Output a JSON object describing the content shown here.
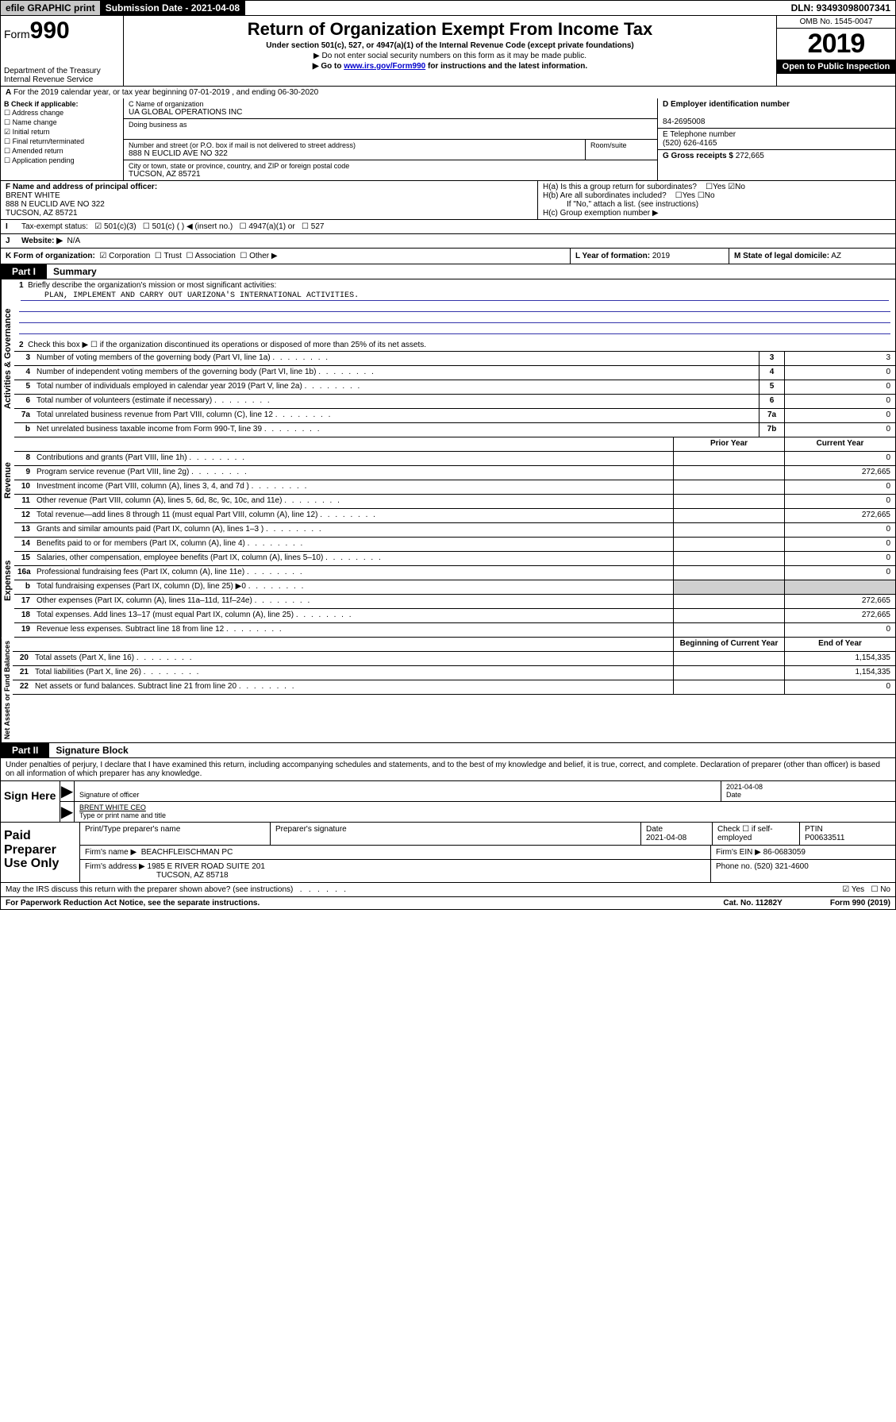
{
  "topbar": {
    "efile": "efile GRAPHIC print",
    "submission": "Submission Date - 2021-04-08",
    "dln": "DLN: 93493098007341"
  },
  "header": {
    "form_label": "Form",
    "form_num": "990",
    "dept": "Department of the Treasury",
    "irs": "Internal Revenue Service",
    "title": "Return of Organization Exempt From Income Tax",
    "sub1": "Under section 501(c), 527, or 4947(a)(1) of the Internal Revenue Code (except private foundations)",
    "sub2": "▶ Do not enter social security numbers on this form as it may be made public.",
    "sub3a": "▶ Go to ",
    "sub3b": "www.irs.gov/Form990",
    "sub3c": " for instructions and the latest information.",
    "omb": "OMB No. 1545-0047",
    "year": "2019",
    "open": "Open to Public Inspection"
  },
  "line_a": "For the 2019 calendar year, or tax year beginning 07-01-2019    , and ending 06-30-2020",
  "check_b": {
    "label": "B Check if applicable:",
    "opts": [
      "Address change",
      "Name change",
      "Initial return",
      "Final return/terminated",
      "Amended return",
      "Application pending"
    ],
    "checked_idx": 2
  },
  "c": {
    "label_name": "C Name of organization",
    "name": "UA GLOBAL OPERATIONS INC",
    "dba_label": "Doing business as",
    "addr_label": "Number and street (or P.O. box if mail is not delivered to street address)",
    "room_label": "Room/suite",
    "addr": "888 N EUCLID AVE NO 322",
    "city_label": "City or town, state or province, country, and ZIP or foreign postal code",
    "city": "TUCSON, AZ  85721"
  },
  "d": {
    "label": "D Employer identification number",
    "val": "84-2695008"
  },
  "e": {
    "label": "E Telephone number",
    "val": "(520) 626-4165"
  },
  "g": {
    "label": "G Gross receipts $",
    "val": "272,665"
  },
  "f": {
    "label": "F  Name and address of principal officer:",
    "name": "BRENT WHITE",
    "addr1": "888 N EUCLID AVE NO 322",
    "addr2": "TUCSON, AZ  85721"
  },
  "h": {
    "a": "H(a)  Is this a group return for subordinates?",
    "b": "H(b)  Are all subordinates included?",
    "b_note": "If \"No,\" attach a list. (see instructions)",
    "c": "H(c)  Group exemption number ▶"
  },
  "i": {
    "label": "Tax-exempt status:",
    "o1": "501(c)(3)",
    "o2": "501(c) (   ) ◀ (insert no.)",
    "o3": "4947(a)(1) or",
    "o4": "527"
  },
  "j": {
    "label": "Website: ▶",
    "val": "N/A"
  },
  "k": {
    "label": "K Form of organization:",
    "opts": [
      "Corporation",
      "Trust",
      "Association",
      "Other ▶"
    ]
  },
  "l": {
    "label": "L Year of formation:",
    "val": "2019"
  },
  "m": {
    "label": "M State of legal domicile:",
    "val": "AZ"
  },
  "part1": {
    "tag": "Part I",
    "title": "Summary"
  },
  "q1": {
    "num": "1",
    "label": "Briefly describe the organization's mission or most significant activities:",
    "text": "PLAN, IMPLEMENT AND CARRY OUT UARIZONA'S INTERNATIONAL ACTIVITIES."
  },
  "q2": {
    "num": "2",
    "label": "Check this box ▶ ☐  if the organization discontinued its operations or disposed of more than 25% of its net assets."
  },
  "rows_gov": [
    {
      "num": "3",
      "desc": "Number of voting members of the governing body (Part VI, line 1a)",
      "box": "3",
      "val": "3"
    },
    {
      "num": "4",
      "desc": "Number of independent voting members of the governing body (Part VI, line 1b)",
      "box": "4",
      "val": "0"
    },
    {
      "num": "5",
      "desc": "Total number of individuals employed in calendar year 2019 (Part V, line 2a)",
      "box": "5",
      "val": "0"
    },
    {
      "num": "6",
      "desc": "Total number of volunteers (estimate if necessary)",
      "box": "6",
      "val": "0"
    },
    {
      "num": "7a",
      "desc": "Total unrelated business revenue from Part VIII, column (C), line 12",
      "box": "7a",
      "val": "0"
    },
    {
      "num": "b",
      "desc": "Net unrelated business taxable income from Form 990-T, line 39",
      "box": "7b",
      "val": "0"
    }
  ],
  "hdr_py": "Prior Year",
  "hdr_cy": "Current Year",
  "rows_rev": [
    {
      "num": "8",
      "desc": "Contributions and grants (Part VIII, line 1h)",
      "py": "",
      "cy": "0"
    },
    {
      "num": "9",
      "desc": "Program service revenue (Part VIII, line 2g)",
      "py": "",
      "cy": "272,665"
    },
    {
      "num": "10",
      "desc": "Investment income (Part VIII, column (A), lines 3, 4, and 7d )",
      "py": "",
      "cy": "0"
    },
    {
      "num": "11",
      "desc": "Other revenue (Part VIII, column (A), lines 5, 6d, 8c, 9c, 10c, and 11e)",
      "py": "",
      "cy": "0"
    },
    {
      "num": "12",
      "desc": "Total revenue—add lines 8 through 11 (must equal Part VIII, column (A), line 12)",
      "py": "",
      "cy": "272,665"
    }
  ],
  "rows_exp": [
    {
      "num": "13",
      "desc": "Grants and similar amounts paid (Part IX, column (A), lines 1–3 )",
      "py": "",
      "cy": "0"
    },
    {
      "num": "14",
      "desc": "Benefits paid to or for members (Part IX, column (A), line 4)",
      "py": "",
      "cy": "0"
    },
    {
      "num": "15",
      "desc": "Salaries, other compensation, employee benefits (Part IX, column (A), lines 5–10)",
      "py": "",
      "cy": "0"
    },
    {
      "num": "16a",
      "desc": "Professional fundraising fees (Part IX, column (A), line 11e)",
      "py": "",
      "cy": "0"
    },
    {
      "num": "b",
      "desc": "Total fundraising expenses (Part IX, column (D), line 25) ▶0",
      "py": "gray",
      "cy": "gray"
    },
    {
      "num": "17",
      "desc": "Other expenses (Part IX, column (A), lines 11a–11d, 11f–24e)",
      "py": "",
      "cy": "272,665"
    },
    {
      "num": "18",
      "desc": "Total expenses. Add lines 13–17 (must equal Part IX, column (A), line 25)",
      "py": "",
      "cy": "272,665"
    },
    {
      "num": "19",
      "desc": "Revenue less expenses. Subtract line 18 from line 12",
      "py": "",
      "cy": "0"
    }
  ],
  "hdr_bcy": "Beginning of Current Year",
  "hdr_eoy": "End of Year",
  "rows_net": [
    {
      "num": "20",
      "desc": "Total assets (Part X, line 16)",
      "py": "",
      "cy": "1,154,335"
    },
    {
      "num": "21",
      "desc": "Total liabilities (Part X, line 26)",
      "py": "",
      "cy": "1,154,335"
    },
    {
      "num": "22",
      "desc": "Net assets or fund balances. Subtract line 21 from line 20",
      "py": "",
      "cy": "0"
    }
  ],
  "vlabels": {
    "gov": "Activities & Governance",
    "rev": "Revenue",
    "exp": "Expenses",
    "net": "Net Assets or Fund Balances"
  },
  "part2": {
    "tag": "Part II",
    "title": "Signature Block"
  },
  "perjury": "Under penalties of perjury, I declare that I have examined this return, including accompanying schedules and statements, and to the best of my knowledge and belief, it is true, correct, and complete. Declaration of preparer (other than officer) is based on all information of which preparer has any knowledge.",
  "sign": {
    "left": "Sign Here",
    "sig_label": "Signature of officer",
    "date": "2021-04-08",
    "date_label": "Date",
    "name": "BRENT WHITE CEO",
    "name_label": "Type or print name and title"
  },
  "paid": {
    "left": "Paid Preparer Use Only",
    "h1": "Print/Type preparer's name",
    "h2": "Preparer's signature",
    "h3": "Date",
    "h3v": "2021-04-08",
    "h4": "Check ☐ if self-employed",
    "h5": "PTIN",
    "h5v": "P00633511",
    "firm_label": "Firm's name     ▶",
    "firm": "BEACHFLEISCHMAN PC",
    "ein_label": "Firm's EIN ▶",
    "ein": "86-0683059",
    "addr_label": "Firm's address ▶",
    "addr1": "1985 E RIVER ROAD SUITE 201",
    "addr2": "TUCSON, AZ  85718",
    "phone_label": "Phone no.",
    "phone": "(520) 321-4600"
  },
  "discuss": "May the IRS discuss this return with the preparer shown above? (see instructions)",
  "footer": {
    "l": "For Paperwork Reduction Act Notice, see the separate instructions.",
    "m": "Cat. No. 11282Y",
    "r": "Form 990 (2019)"
  }
}
